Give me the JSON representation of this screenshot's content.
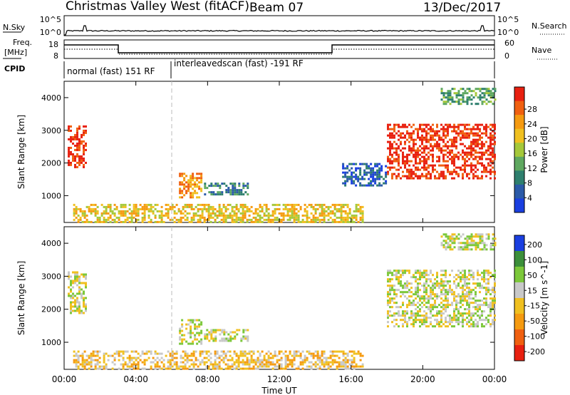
{
  "header": {
    "title": "Christmas Valley West (fitACF)",
    "beam": "Beam 07",
    "date": "13/Dec/2017"
  },
  "top_panels": {
    "nsky_label": "N.Sky",
    "nsky_ticks": [
      "10^5",
      "10^0"
    ],
    "nsearch_label": "N.Search",
    "nsearch_ticks": [
      "10^5",
      "10^0"
    ],
    "freq_label": [
      "Freq.",
      "[MHz]"
    ],
    "freq_ticks": [
      "18",
      "8"
    ],
    "nave_label": "Nave",
    "nave_ticks": [
      "60",
      "0"
    ],
    "cpid_label": "CPID",
    "cpid_segments": [
      "normal (fast) 151 RF",
      "interleavedscan (fast) -191 RF"
    ]
  },
  "chart_data": [
    {
      "type": "heatmap",
      "panel": "power",
      "ylabel": "Slant Range [km]",
      "xlabel": "Time UT",
      "x_ticks": [
        "00:00",
        "04:00",
        "08:00",
        "12:00",
        "16:00",
        "20:00",
        "00:00"
      ],
      "x_range_hours": [
        0,
        24
      ],
      "y_ticks": [
        1000,
        2000,
        3000,
        4000
      ],
      "ylim": [
        180,
        4500
      ],
      "colorbar_label": "Power [dB]",
      "colorbar_ticks": [
        "4",
        "8",
        "12",
        "16",
        "20",
        "24",
        "28"
      ],
      "colorbar_colors": [
        "#1a3fe0",
        "#2b5aa8",
        "#2e7f6e",
        "#5fa860",
        "#a5c83a",
        "#f0c020",
        "#f59a10",
        "#f06010",
        "#e82010"
      ],
      "regions": [
        {
          "hours": [
            0.2,
            1.2
          ],
          "range_km": [
            1900,
            3150
          ],
          "level": 8
        },
        {
          "hours": [
            6.4,
            7.6
          ],
          "range_km": [
            950,
            1700
          ],
          "level": 6
        },
        {
          "hours": [
            7.8,
            10.3
          ],
          "range_km": [
            1050,
            1400
          ],
          "level": 2
        },
        {
          "hours": [
            0.5,
            16.7
          ],
          "range_km": [
            200,
            750
          ],
          "level": 5
        },
        {
          "hours": [
            18.0,
            24.0
          ],
          "range_km": [
            1500,
            3200
          ],
          "level": 8
        },
        {
          "hours": [
            15.5,
            18.0
          ],
          "range_km": [
            1300,
            2000
          ],
          "level": 1
        },
        {
          "hours": [
            21.0,
            24.0
          ],
          "range_km": [
            3800,
            4300
          ],
          "level": 3
        }
      ]
    },
    {
      "type": "heatmap",
      "panel": "velocity",
      "ylabel": "Slant Range [km]",
      "xlabel": "Time UT",
      "x_ticks": [
        "00:00",
        "04:00",
        "08:00",
        "12:00",
        "16:00",
        "20:00",
        "00:00"
      ],
      "x_range_hours": [
        0,
        24
      ],
      "y_ticks": [
        1000,
        2000,
        3000,
        4000
      ],
      "ylim": [
        180,
        4500
      ],
      "colorbar_label": "Velocity [m s^-1]",
      "colorbar_ticks": [
        "200",
        "100",
        "50",
        "15",
        "-15",
        "-50",
        "-100",
        "-200"
      ],
      "colorbar_colors": [
        "#1a3fe0",
        "#3c8f3a",
        "#7cc83a",
        "#c8c8c8",
        "#f0c020",
        "#f59a10",
        "#f06010",
        "#e82010"
      ],
      "regions": [
        {
          "hours": [
            0.2,
            1.2
          ],
          "range_km": [
            1900,
            3150
          ],
          "level": 3
        },
        {
          "hours": [
            6.4,
            7.6
          ],
          "range_km": [
            950,
            1700
          ],
          "level": 3
        },
        {
          "hours": [
            7.8,
            10.3
          ],
          "range_km": [
            1050,
            1400
          ],
          "level": 3
        },
        {
          "hours": [
            0.5,
            16.7
          ],
          "range_km": [
            200,
            750
          ],
          "level": 4
        },
        {
          "hours": [
            18.0,
            24.0
          ],
          "range_km": [
            1500,
            3200
          ],
          "level": 3
        },
        {
          "hours": [
            21.0,
            24.0
          ],
          "range_km": [
            3800,
            4300
          ],
          "level": 3
        }
      ]
    }
  ],
  "time_axis_label": "Time UT"
}
